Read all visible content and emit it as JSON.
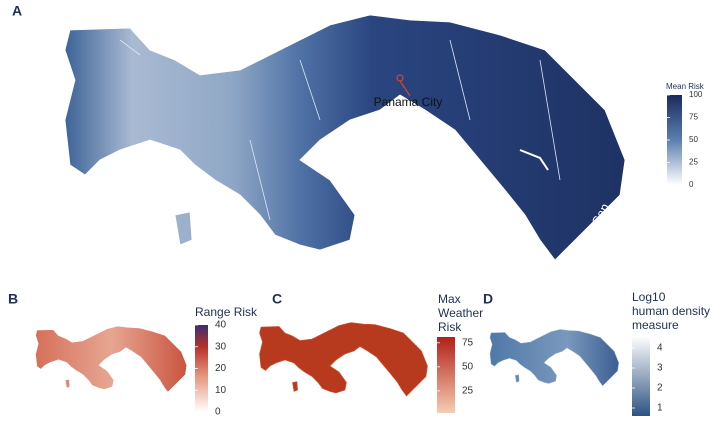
{
  "panels": [
    {
      "label": "A",
      "annotations": [
        "Panama City",
        "Darien Gap"
      ],
      "legend": {
        "title": [
          "Mean Risk"
        ],
        "lim": [
          0,
          100
        ],
        "ticks": [
          0,
          25,
          50,
          75,
          100
        ]
      }
    },
    {
      "label": "B",
      "legend": {
        "title": [
          "Range Risk"
        ],
        "lim": [
          0,
          40
        ],
        "ticks": [
          0,
          10,
          20,
          30,
          40
        ]
      }
    },
    {
      "label": "C",
      "legend": {
        "title": [
          "Max",
          "Weather",
          "Risk"
        ],
        "lim": [
          2,
          81
        ],
        "ticks": [
          25,
          50,
          75
        ]
      }
    },
    {
      "label": "D",
      "legend": {
        "title": [
          "Log10",
          "human density",
          "measure"
        ],
        "lim": [
          0.6,
          4.6
        ],
        "ticks": [
          1,
          2,
          3,
          4
        ]
      }
    }
  ]
}
